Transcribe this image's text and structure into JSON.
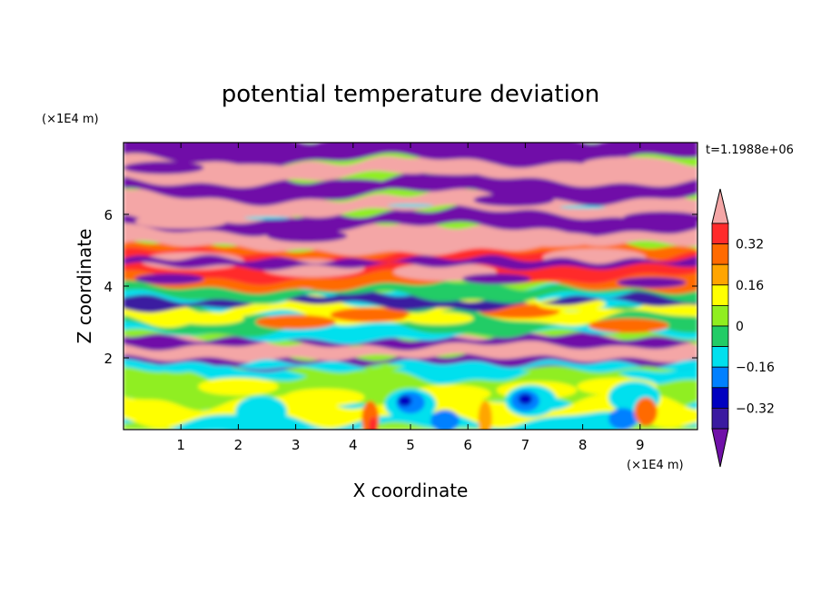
{
  "chart_data": {
    "type": "heatmap",
    "title": "potential temperature deviation",
    "xlabel": "X coordinate",
    "ylabel": "Z coordinate",
    "x_unit": "(×1E4 m)",
    "y_unit": "(×1E4 m)",
    "time_label": "t=1.1988e+06",
    "xlim": [
      0,
      10
    ],
    "ylim": [
      0,
      8
    ],
    "x_ticks": [
      1,
      2,
      3,
      4,
      5,
      6,
      7,
      8,
      9
    ],
    "y_ticks": [
      2,
      4,
      6
    ],
    "colorbar": {
      "labels": [
        "0.32",
        "0.16",
        "0",
        "−0.16",
        "−0.32"
      ],
      "label_values": [
        0.32,
        0.16,
        0,
        -0.16,
        -0.32
      ],
      "levels": [
        0.4,
        0.32,
        0.24,
        0.16,
        0.08,
        0,
        -0.08,
        -0.16,
        -0.24,
        -0.32,
        -0.4
      ],
      "over_color": "#f4a6a6",
      "under_color": "#7010a8",
      "band_colors": [
        "#ff2b2b",
        "#ff6a00",
        "#ffa500",
        "#ffff00",
        "#90ee20",
        "#22cc66",
        "#00e0ee",
        "#0080ff",
        "#0000c0",
        "#3a1aa0"
      ]
    },
    "field_layers": [
      {
        "z_range": [
          0,
          0.6
        ],
        "dominant": "light green / cyan with blue eddies, red-orange plumes"
      },
      {
        "z_range": [
          0.6,
          1.8
        ],
        "dominant": "yellow / green / cyan mixed"
      },
      {
        "z_range": [
          1.8,
          2.6
        ],
        "dominant": "purple and pink bands"
      },
      {
        "z_range": [
          2.6,
          4.0
        ],
        "dominant": "cyan / green / yellow / orange"
      },
      {
        "z_range": [
          4.0,
          5.2
        ],
        "dominant": "red / orange / pink"
      },
      {
        "z_range": [
          5.2,
          8.0
        ],
        "dominant": "alternating pink and purple layers"
      }
    ]
  }
}
